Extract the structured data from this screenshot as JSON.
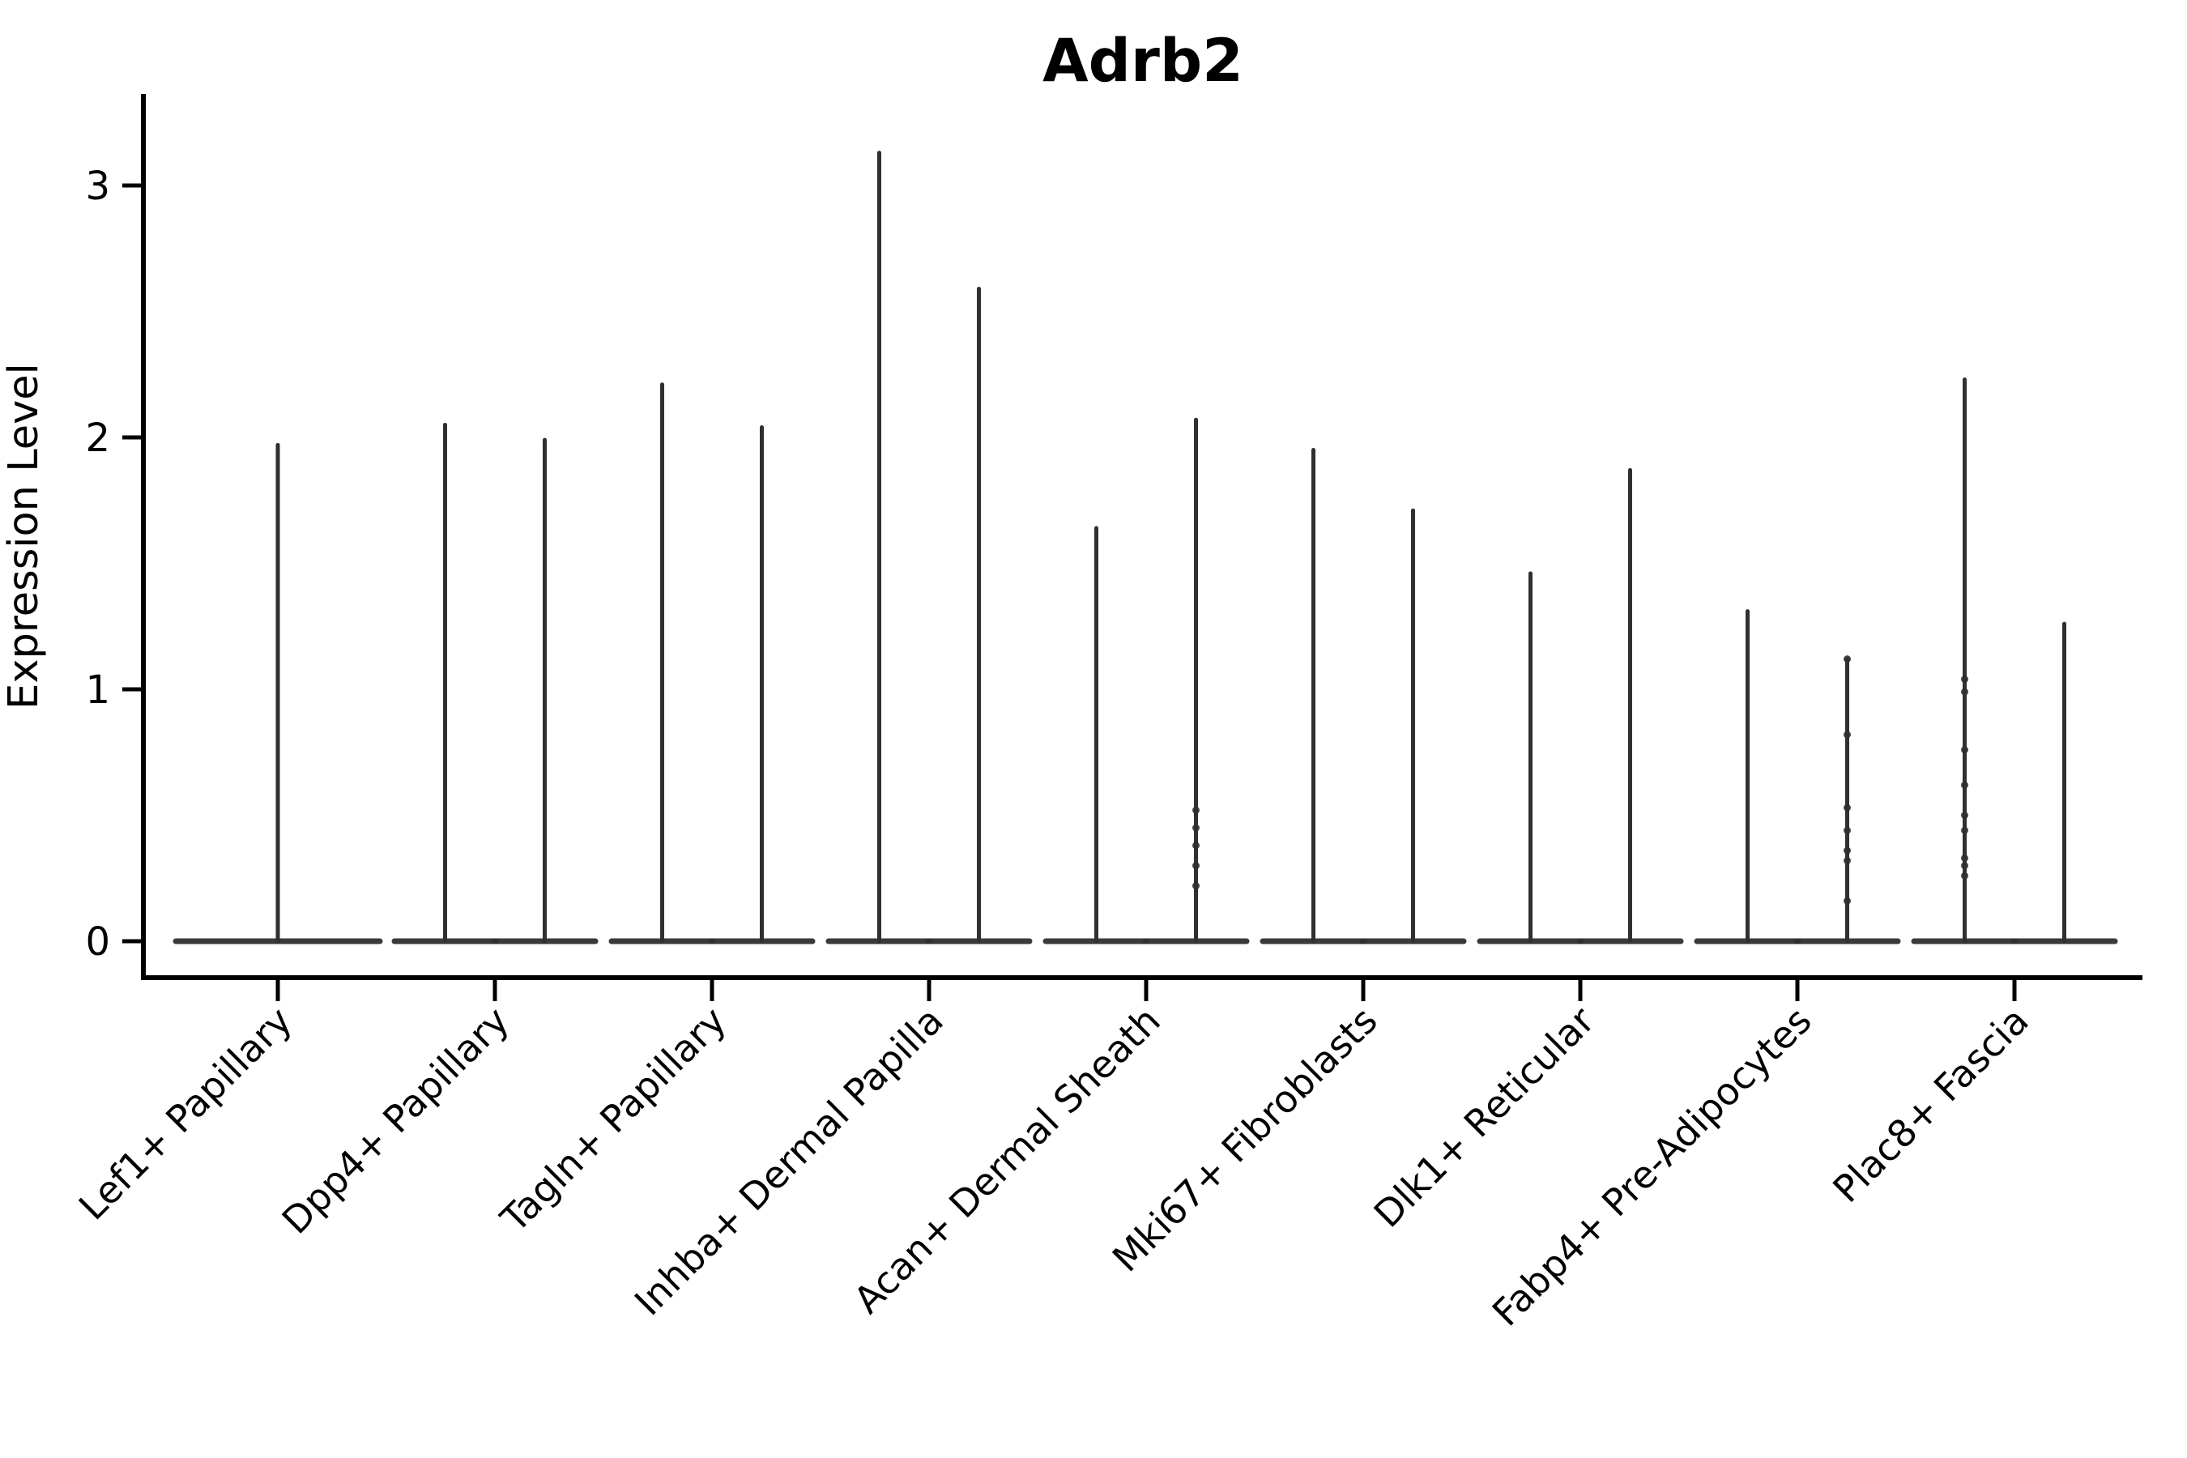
{
  "figure": {
    "background": "#ffffff"
  },
  "colors": {
    "violin": "#303030",
    "axis": "#000000",
    "text": "#000000",
    "background": "#ffffff"
  },
  "chart_data": {
    "type": "violin",
    "title": "Adrb2",
    "ylabel": "Expression Level",
    "xlabel": "",
    "grid": false,
    "legend": "none",
    "ylim": [
      -0.15,
      3.36
    ],
    "yticks": [
      0,
      1,
      2,
      3
    ],
    "categories": [
      "Lef1+ Papillary",
      "Dpp4+ Papillary",
      "Tagln+ Papillary",
      "Inhba+ Dermal Papilla",
      "Acan+ Dermal Sheath",
      "Mki67+ Fibroblasts",
      "Dlk1+ Reticular",
      "Fabp4+ Pre-Adipocytes",
      "Plac8+ Fascia"
    ],
    "violins": [
      {
        "category_index": 0,
        "position": "center",
        "max_expression": 1.97,
        "dots": []
      },
      {
        "category_index": 1,
        "position": "left",
        "max_expression": 2.05,
        "dots": []
      },
      {
        "category_index": 1,
        "position": "right",
        "max_expression": 1.99,
        "dots": []
      },
      {
        "category_index": 2,
        "position": "left",
        "max_expression": 2.21,
        "dots": []
      },
      {
        "category_index": 2,
        "position": "right",
        "max_expression": 2.04,
        "dots": []
      },
      {
        "category_index": 3,
        "position": "left",
        "max_expression": 3.13,
        "dots": []
      },
      {
        "category_index": 3,
        "position": "right",
        "max_expression": 2.59,
        "dots": []
      },
      {
        "category_index": 4,
        "position": "left",
        "max_expression": 1.64,
        "dots": []
      },
      {
        "category_index": 4,
        "position": "right",
        "max_expression": 2.07,
        "dots": [
          0.52,
          0.45,
          0.38,
          0.3,
          0.22
        ]
      },
      {
        "category_index": 5,
        "position": "left",
        "max_expression": 1.95,
        "dots": []
      },
      {
        "category_index": 5,
        "position": "right",
        "max_expression": 1.71,
        "dots": []
      },
      {
        "category_index": 6,
        "position": "left",
        "max_expression": 1.46,
        "dots": []
      },
      {
        "category_index": 6,
        "position": "right",
        "max_expression": 1.87,
        "dots": []
      },
      {
        "category_index": 7,
        "position": "left",
        "max_expression": 1.31,
        "dots": []
      },
      {
        "category_index": 7,
        "position": "right",
        "max_expression": 1.12,
        "dots": [
          1.12,
          0.82,
          0.53,
          0.44,
          0.36,
          0.32,
          0.16
        ]
      },
      {
        "category_index": 8,
        "position": "left",
        "max_expression": 2.23,
        "dots": [
          1.04,
          0.99,
          0.76,
          0.62,
          0.5,
          0.44,
          0.33,
          0.3,
          0.26
        ]
      },
      {
        "category_index": 8,
        "position": "right",
        "max_expression": 1.26,
        "dots": []
      }
    ]
  }
}
